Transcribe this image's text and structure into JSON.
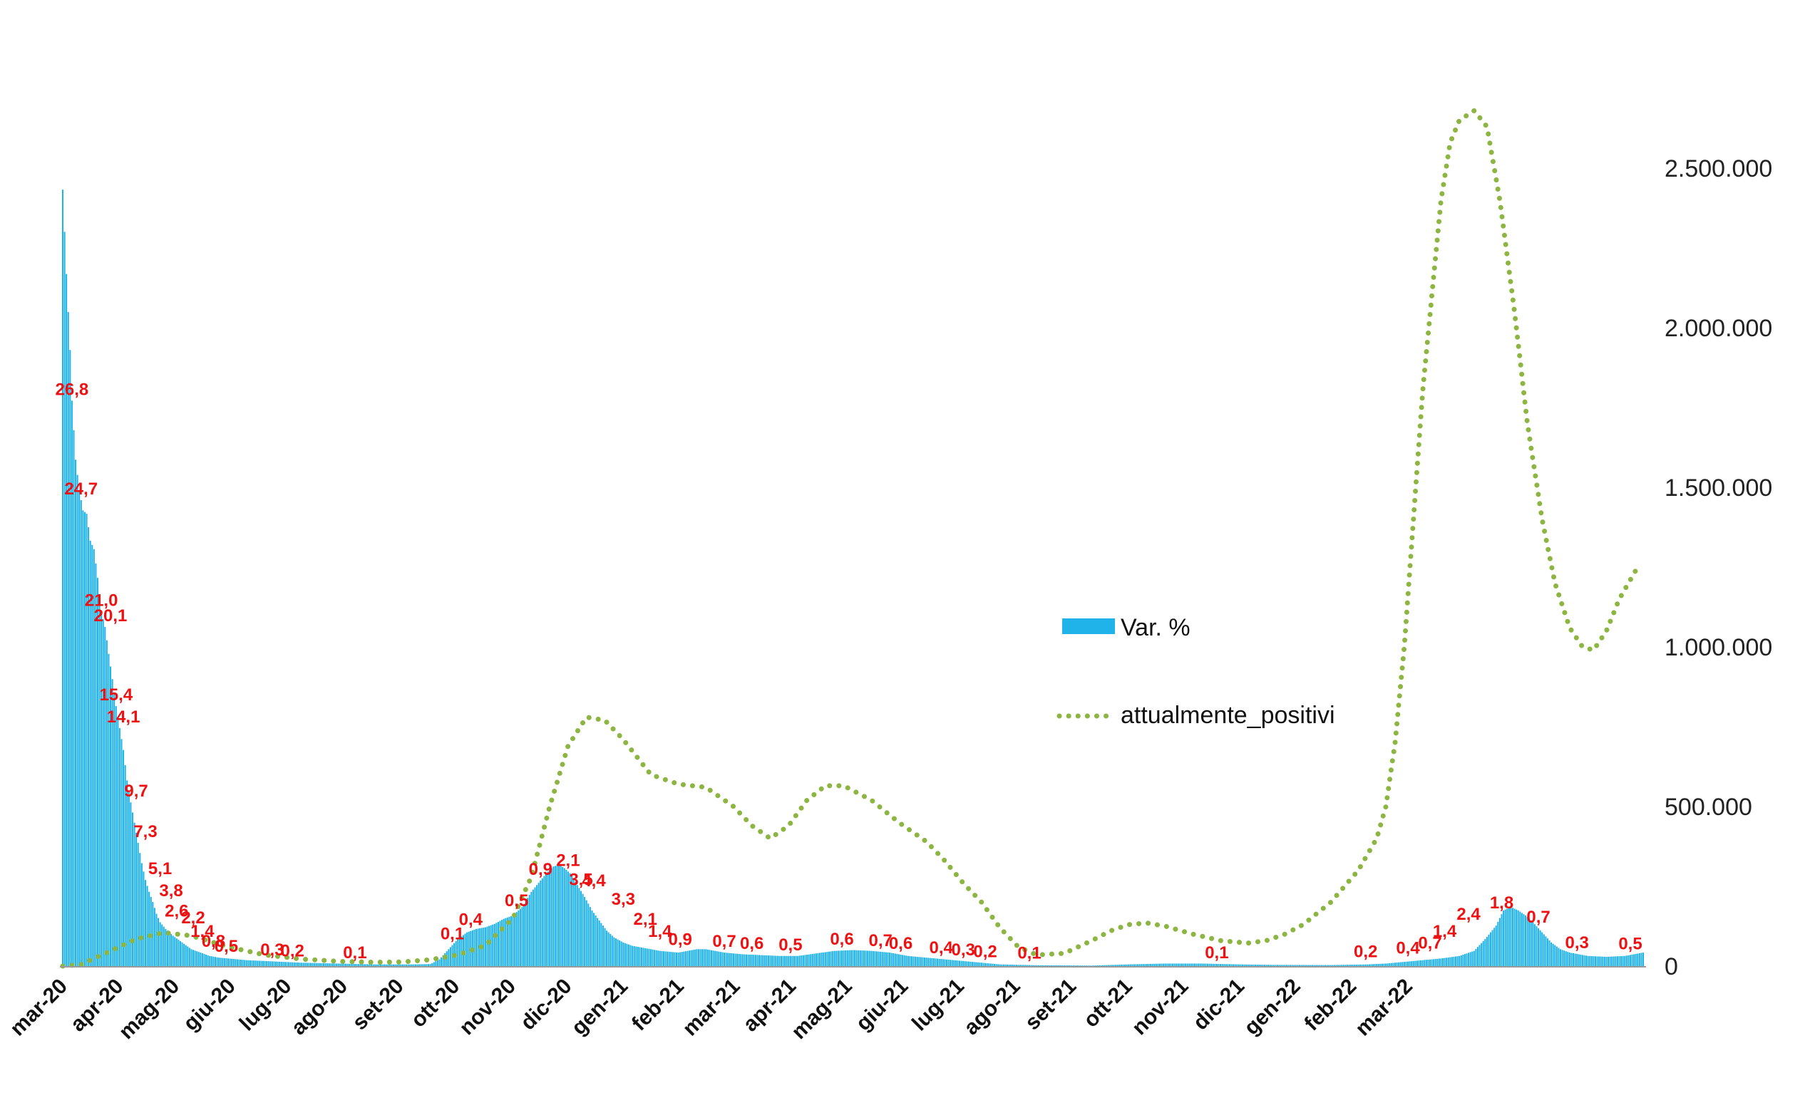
{
  "chart_data": {
    "type": "bar+line",
    "title": "",
    "colors": {
      "bars": "#1FB3EA",
      "line": "#8DB542",
      "labels": "#EE1111"
    },
    "x_ticks": [
      "mar-20",
      "apr-20",
      "mag-20",
      "giu-20",
      "lug-20",
      "ago-20",
      "set-20",
      "ott-20",
      "nov-20",
      "dic-20",
      "gen-21",
      "feb-21",
      "mar-21",
      "apr-21",
      "mag-21",
      "giu-21",
      "lug-21",
      "ago-21",
      "set-21",
      "ott-21",
      "nov-21",
      "dic-21",
      "gen-22",
      "feb-22",
      "mar-22"
    ],
    "y_right": {
      "ticks": [
        "0",
        "500.000",
        "1.000.000",
        "1.500.000",
        "2.000.000",
        "2.500.000"
      ],
      "values": [
        0,
        500000,
        1000000,
        1500000,
        2000000,
        2500000
      ],
      "lim": [
        0,
        2750000
      ]
    },
    "y_left_lim": [
      0,
      52
    ],
    "legend": {
      "bars": "Var. %",
      "line": "attualmente_positivi",
      "position": "right-center"
    },
    "series": [
      {
        "name": "Var. %",
        "type": "bar",
        "points": [
          [
            0,
            46.0
          ],
          [
            2,
            41.0
          ],
          [
            4,
            36.5
          ],
          [
            5,
            33.5
          ],
          [
            7,
            30.0
          ],
          [
            9,
            28.2
          ],
          [
            11,
            27.0
          ],
          [
            13,
            26.8
          ],
          [
            15,
            25.2
          ],
          [
            17,
            24.7
          ],
          [
            19,
            23.0
          ],
          [
            21,
            21.0
          ],
          [
            23,
            20.1
          ],
          [
            25,
            18.5
          ],
          [
            27,
            17.0
          ],
          [
            29,
            15.4
          ],
          [
            31,
            14.1
          ],
          [
            33,
            12.8
          ],
          [
            35,
            11.0
          ],
          [
            37,
            9.7
          ],
          [
            39,
            8.5
          ],
          [
            41,
            7.3
          ],
          [
            43,
            6.1
          ],
          [
            45,
            5.1
          ],
          [
            47,
            4.4
          ],
          [
            49,
            3.8
          ],
          [
            51,
            3.1
          ],
          [
            53,
            2.6
          ],
          [
            56,
            2.2
          ],
          [
            60,
            1.8
          ],
          [
            65,
            1.4
          ],
          [
            70,
            1.0
          ],
          [
            75,
            0.8
          ],
          [
            80,
            0.6
          ],
          [
            85,
            0.5
          ],
          [
            90,
            0.45
          ],
          [
            100,
            0.35
          ],
          [
            110,
            0.3
          ],
          [
            120,
            0.25
          ],
          [
            130,
            0.2
          ],
          [
            150,
            0.15
          ],
          [
            170,
            0.1
          ],
          [
            190,
            0.1
          ],
          [
            200,
            0.12
          ],
          [
            205,
            0.4
          ],
          [
            210,
            1.0
          ],
          [
            215,
            1.6
          ],
          [
            220,
            2.0
          ],
          [
            225,
            2.2
          ],
          [
            230,
            2.3
          ],
          [
            235,
            2.5
          ],
          [
            240,
            2.8
          ],
          [
            245,
            3.0
          ],
          [
            250,
            3.5
          ],
          [
            255,
            4.4
          ],
          [
            258,
            4.8
          ],
          [
            261,
            5.2
          ],
          [
            264,
            5.6
          ],
          [
            267,
            5.9
          ],
          [
            270,
            6.0
          ],
          [
            273,
            5.8
          ],
          [
            276,
            5.5
          ],
          [
            280,
            4.8
          ],
          [
            284,
            4.1
          ],
          [
            288,
            3.3
          ],
          [
            292,
            2.7
          ],
          [
            296,
            2.1
          ],
          [
            300,
            1.7
          ],
          [
            305,
            1.4
          ],
          [
            310,
            1.2
          ],
          [
            315,
            1.1
          ],
          [
            320,
            1.0
          ],
          [
            325,
            0.9
          ],
          [
            330,
            0.85
          ],
          [
            335,
            0.8
          ],
          [
            340,
            0.9
          ],
          [
            345,
            1.0
          ],
          [
            350,
            1.0
          ],
          [
            355,
            0.9
          ],
          [
            360,
            0.8
          ],
          [
            365,
            0.75
          ],
          [
            370,
            0.7
          ],
          [
            380,
            0.65
          ],
          [
            390,
            0.6
          ],
          [
            400,
            0.6
          ],
          [
            410,
            0.75
          ],
          [
            420,
            0.9
          ],
          [
            430,
            0.95
          ],
          [
            440,
            0.9
          ],
          [
            450,
            0.8
          ],
          [
            460,
            0.6
          ],
          [
            470,
            0.5
          ],
          [
            480,
            0.4
          ],
          [
            490,
            0.3
          ],
          [
            500,
            0.2
          ],
          [
            510,
            0.1
          ],
          [
            530,
            0.05
          ],
          [
            560,
            0.03
          ],
          [
            580,
            0.1
          ],
          [
            600,
            0.15
          ],
          [
            620,
            0.15
          ],
          [
            640,
            0.1
          ],
          [
            660,
            0.07
          ],
          [
            690,
            0.06
          ],
          [
            710,
            0.1
          ],
          [
            720,
            0.15
          ],
          [
            730,
            0.25
          ],
          [
            740,
            0.35
          ],
          [
            750,
            0.45
          ],
          [
            760,
            0.6
          ],
          [
            768,
            0.9
          ],
          [
            774,
            1.6
          ],
          [
            780,
            2.4
          ],
          [
            784,
            3.3
          ],
          [
            788,
            3.5
          ],
          [
            792,
            3.3
          ],
          [
            796,
            3.0
          ],
          [
            800,
            2.6
          ],
          [
            805,
            2.0
          ],
          [
            810,
            1.4
          ],
          [
            815,
            1.0
          ],
          [
            820,
            0.8
          ],
          [
            830,
            0.6
          ],
          [
            840,
            0.55
          ],
          [
            850,
            0.6
          ],
          [
            855,
            0.7
          ],
          [
            860,
            0.8
          ],
          [
            870,
            0.75
          ],
          [
            880,
            0.7
          ]
        ]
      },
      {
        "name": "attualmente_positivi",
        "type": "line",
        "points": [
          [
            0,
            0
          ],
          [
            10,
            5000
          ],
          [
            25,
            45000
          ],
          [
            40,
            85000
          ],
          [
            55,
            105000
          ],
          [
            70,
            95000
          ],
          [
            90,
            60000
          ],
          [
            110,
            35000
          ],
          [
            130,
            22000
          ],
          [
            150,
            15000
          ],
          [
            170,
            12000
          ],
          [
            185,
            13000
          ],
          [
            200,
            20000
          ],
          [
            215,
            35000
          ],
          [
            230,
            65000
          ],
          [
            245,
            150000
          ],
          [
            255,
            280000
          ],
          [
            265,
            500000
          ],
          [
            275,
            690000
          ],
          [
            285,
            780000
          ],
          [
            295,
            770000
          ],
          [
            305,
            710000
          ],
          [
            320,
            600000
          ],
          [
            335,
            570000
          ],
          [
            350,
            560000
          ],
          [
            365,
            500000
          ],
          [
            375,
            440000
          ],
          [
            385,
            400000
          ],
          [
            395,
            440000
          ],
          [
            405,
            520000
          ],
          [
            415,
            565000
          ],
          [
            425,
            565000
          ],
          [
            440,
            520000
          ],
          [
            455,
            450000
          ],
          [
            470,
            390000
          ],
          [
            480,
            330000
          ],
          [
            490,
            260000
          ],
          [
            500,
            200000
          ],
          [
            510,
            120000
          ],
          [
            520,
            60000
          ],
          [
            530,
            35000
          ],
          [
            545,
            40000
          ],
          [
            560,
            80000
          ],
          [
            570,
            110000
          ],
          [
            580,
            130000
          ],
          [
            590,
            135000
          ],
          [
            600,
            125000
          ],
          [
            615,
            100000
          ],
          [
            630,
            80000
          ],
          [
            645,
            72000
          ],
          [
            655,
            80000
          ],
          [
            665,
            100000
          ],
          [
            675,
            130000
          ],
          [
            690,
            200000
          ],
          [
            705,
            300000
          ],
          [
            715,
            400000
          ],
          [
            720,
            500000
          ],
          [
            725,
            700000
          ],
          [
            730,
            1000000
          ],
          [
            735,
            1400000
          ],
          [
            740,
            1800000
          ],
          [
            745,
            2100000
          ],
          [
            750,
            2400000
          ],
          [
            755,
            2580000
          ],
          [
            760,
            2650000
          ],
          [
            768,
            2680000
          ],
          [
            775,
            2630000
          ],
          [
            782,
            2400000
          ],
          [
            790,
            2050000
          ],
          [
            797,
            1700000
          ],
          [
            805,
            1400000
          ],
          [
            812,
            1200000
          ],
          [
            820,
            1060000
          ],
          [
            827,
            1000000
          ],
          [
            833,
            990000
          ],
          [
            840,
            1050000
          ],
          [
            847,
            1150000
          ],
          [
            852,
            1200000
          ],
          [
            856,
            1240000
          ]
        ]
      }
    ],
    "data_labels": [
      {
        "x": 5,
        "v": "26,8"
      },
      {
        "x": 10,
        "v": "24,7"
      },
      {
        "x": 21,
        "v": "21,0"
      },
      {
        "x": 26,
        "v": "20,1"
      },
      {
        "x": 29,
        "v": "15,4"
      },
      {
        "x": 33,
        "v": "14,1"
      },
      {
        "x": 40,
        "v": "9,7"
      },
      {
        "x": 45,
        "v": "7,3"
      },
      {
        "x": 53,
        "v": "5,1"
      },
      {
        "x": 59,
        "v": "3,8"
      },
      {
        "x": 62,
        "v": "2,6"
      },
      {
        "x": 71,
        "v": "2,2"
      },
      {
        "x": 76,
        "v": "1,4"
      },
      {
        "x": 82,
        "v": "0,8"
      },
      {
        "x": 89,
        "v": "0,5"
      },
      {
        "x": 114,
        "v": "0,3"
      },
      {
        "x": 125,
        "v": "0,2"
      },
      {
        "x": 159,
        "v": "0,1"
      },
      {
        "x": 212,
        "v": "0,1"
      },
      {
        "x": 222,
        "v": "0,4"
      },
      {
        "x": 247,
        "v": "0,5"
      },
      {
        "x": 260,
        "v": "0,9"
      },
      {
        "x": 275,
        "v": "2,1"
      },
      {
        "x": 282,
        "v": "3,5"
      },
      {
        "x": 289,
        "v": "4,4"
      },
      {
        "x": 305,
        "v": "3,3"
      },
      {
        "x": 317,
        "v": "2,1"
      },
      {
        "x": 325,
        "v": "1,4"
      },
      {
        "x": 336,
        "v": "0,9"
      },
      {
        "x": 360,
        "v": "0,7"
      },
      {
        "x": 375,
        "v": "0,6"
      },
      {
        "x": 396,
        "v": "0,5"
      },
      {
        "x": 424,
        "v": "0,6"
      },
      {
        "x": 445,
        "v": "0,7"
      },
      {
        "x": 456,
        "v": "0,6"
      },
      {
        "x": 478,
        "v": "0,4"
      },
      {
        "x": 490,
        "v": "0,3"
      },
      {
        "x": 502,
        "v": "0,2"
      },
      {
        "x": 526,
        "v": "0,1"
      },
      {
        "x": 628,
        "v": "0,1"
      },
      {
        "x": 709,
        "v": "0,2"
      },
      {
        "x": 732,
        "v": "0,4"
      },
      {
        "x": 744,
        "v": "0,7"
      },
      {
        "x": 752,
        "v": "1,4"
      },
      {
        "x": 765,
        "v": "2,4"
      },
      {
        "x": 783,
        "v": "1,8"
      },
      {
        "x": 803,
        "v": "0,7"
      },
      {
        "x": 824,
        "v": "0,3"
      },
      {
        "x": 853,
        "v": "0,5"
      }
    ],
    "xlim": [
      0,
      860
    ],
    "grid": false
  }
}
